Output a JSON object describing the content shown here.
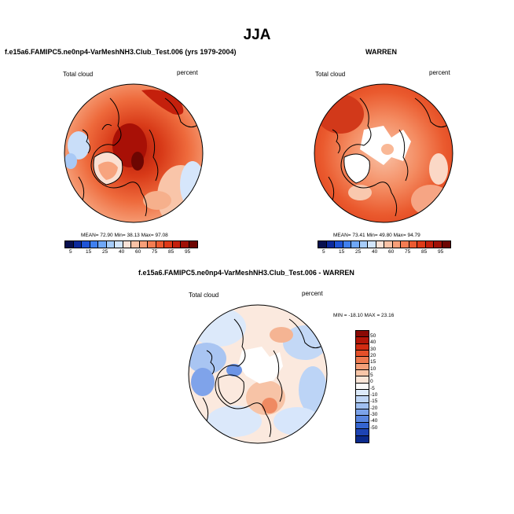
{
  "page": {
    "title": "JJA"
  },
  "panels": [
    {
      "title": "f.e15a6.FAMIPC5.ne0np4-VarMeshNH3.Club_Test.006 (yrs 1979-2004)",
      "left_label": "Total cloud",
      "right_label": "percent",
      "stats": "MEAN=  72.90  Min=  38.13  Max=  97.08",
      "theme": "warm"
    },
    {
      "title": "WARREN",
      "left_label": "Total cloud",
      "right_label": "percent",
      "stats": "MEAN=  73.41  Min=  49.80  Max=  94.79",
      "theme": "warm-missing"
    },
    {
      "title": "f.e15a6.FAMIPC5.ne0np4-VarMeshNH3.Club_Test.006 - WARREN",
      "left_label": "Total cloud",
      "right_label": "percent",
      "stats": "MIN = -18.10 MAX =  23.16",
      "theme": "diff"
    }
  ],
  "chart_data": [
    {
      "type": "heatmap",
      "projection": "north polar stereographic",
      "title": "f.e15a6.FAMIPC5.ne0np4-VarMeshNH3.Club_Test.006 (yrs 1979-2004)",
      "field": "Total cloud",
      "units": "percent",
      "mean": 72.9,
      "min": 38.13,
      "max": 97.08,
      "colorbar_levels": [
        5,
        10,
        15,
        20,
        25,
        30,
        40,
        50,
        60,
        65,
        70,
        75,
        80,
        85,
        90,
        95
      ],
      "colorbar_labels": [
        "5",
        "15",
        "25",
        "40",
        "60",
        "75",
        "85",
        "95"
      ]
    },
    {
      "type": "heatmap",
      "projection": "north polar stereographic",
      "title": "WARREN",
      "field": "Total cloud",
      "units": "percent",
      "mean": 73.41,
      "min": 49.8,
      "max": 94.79,
      "colorbar_levels": [
        5,
        10,
        15,
        20,
        25,
        30,
        40,
        50,
        60,
        65,
        70,
        75,
        80,
        85,
        90,
        95
      ],
      "colorbar_labels": [
        "5",
        "15",
        "25",
        "40",
        "60",
        "75",
        "85",
        "95"
      ]
    },
    {
      "type": "heatmap",
      "projection": "north polar stereographic",
      "title": "f.e15a6.FAMIPC5.ne0np4-VarMeshNH3.Club_Test.006 - WARREN",
      "field": "Total cloud",
      "units": "percent",
      "min": -18.1,
      "max": 23.16,
      "colorbar_labels": [
        "50",
        "40",
        "30",
        "20",
        "15",
        "10",
        "5",
        "0",
        "-5",
        "-10",
        "-15",
        "-20",
        "-30",
        "-40",
        "-50"
      ]
    }
  ],
  "colors": {
    "abs_scale": [
      "#08104f",
      "#0c2a9c",
      "#1f54d6",
      "#3f7fee",
      "#6fa7f6",
      "#a6ccf9",
      "#d2e5fb",
      "#fbe2d6",
      "#f9c2a6",
      "#f79f79",
      "#f37c52",
      "#ec5a30",
      "#de3a18",
      "#c4200c",
      "#a01006",
      "#6d0602"
    ],
    "diff_scale": [
      "#8a0a04",
      "#b31608",
      "#d12c12",
      "#e4502a",
      "#ee7a50",
      "#f4a07a",
      "#f8c6a8",
      "#fbe6d8",
      "#fbfbfb",
      "#dceafa",
      "#bfd6f6",
      "#9fbff1",
      "#7ca3ea",
      "#5a86e0",
      "#3565d1",
      "#1e44b4",
      "#0b2a8c"
    ]
  }
}
